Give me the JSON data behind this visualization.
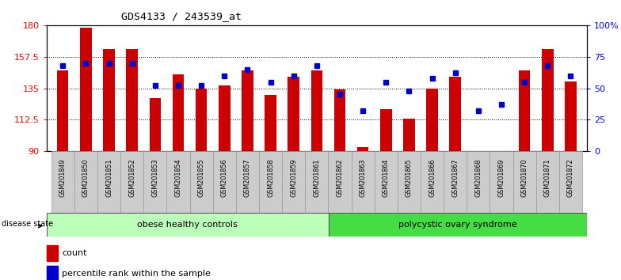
{
  "title": "GDS4133 / 243539_at",
  "samples": [
    "GSM201849",
    "GSM201850",
    "GSM201851",
    "GSM201852",
    "GSM201853",
    "GSM201854",
    "GSM201855",
    "GSM201856",
    "GSM201857",
    "GSM201858",
    "GSM201859",
    "GSM201861",
    "GSM201862",
    "GSM201863",
    "GSM201864",
    "GSM201865",
    "GSM201866",
    "GSM201867",
    "GSM201868",
    "GSM201869",
    "GSM201870",
    "GSM201871",
    "GSM201872"
  ],
  "counts": [
    148,
    178,
    163,
    163,
    128,
    145,
    135,
    137,
    148,
    130,
    143,
    148,
    134,
    93,
    120,
    113,
    135,
    143,
    90,
    90,
    148,
    163,
    140
  ],
  "percentiles": [
    68,
    70,
    70,
    70,
    52,
    52,
    52,
    60,
    65,
    55,
    60,
    68,
    45,
    32,
    55,
    48,
    58,
    62,
    32,
    37,
    55,
    68,
    60
  ],
  "group1_label": "obese healthy controls",
  "group2_label": "polycystic ovary syndrome",
  "group1_count": 12,
  "group2_count": 11,
  "ymin": 90,
  "ymax": 180,
  "yticks": [
    90,
    112.5,
    135,
    157.5,
    180
  ],
  "ytick_labels": [
    "90",
    "112.5",
    "135",
    "157.5",
    "180"
  ],
  "y2min": 0,
  "y2max": 100,
  "y2ticks": [
    0,
    25,
    50,
    75,
    100
  ],
  "y2tick_labels": [
    "0",
    "25",
    "50",
    "75",
    "100%"
  ],
  "bar_color": "#cc0000",
  "dot_color": "#0000cc",
  "group1_color": "#bbffbb",
  "group2_color": "#44dd44",
  "bg_color": "#ffffff",
  "legend_count_label": "count",
  "legend_pct_label": "percentile rank within the sample",
  "xtick_bg": "#cccccc",
  "grid_color": "#000000",
  "bar_width": 0.5
}
